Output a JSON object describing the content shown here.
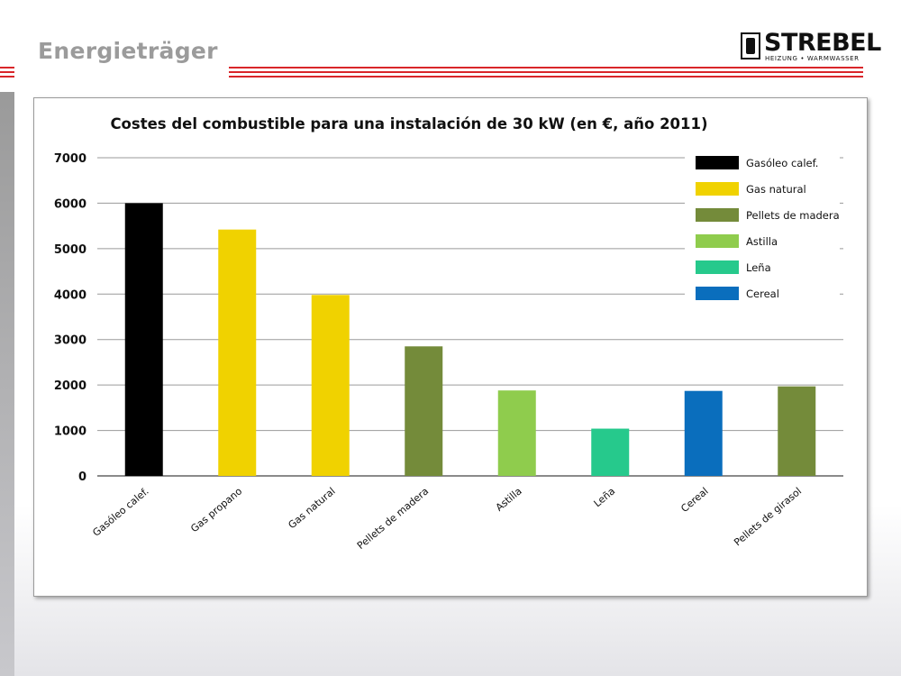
{
  "slide": {
    "title": "Energieträger",
    "logo_text": "STREBEL",
    "logo_subtext": "HEIZUNG • WARMWASSER"
  },
  "chart_data": {
    "type": "bar",
    "title": "Costes del combustible para una instalación de 30 kW (en €, año 2011)",
    "xlabel": "",
    "ylabel": "",
    "ylim": [
      0,
      7000
    ],
    "yticks": [
      0,
      1000,
      2000,
      3000,
      4000,
      5000,
      6000,
      7000
    ],
    "grid": true,
    "legend_position": "top-right",
    "categories": [
      "Gasóleo calef.",
      "Gas propano",
      "Gas natural",
      "Pellets de madera",
      "Astilla",
      "Leña",
      "Cereal",
      "Pellets de girasol"
    ],
    "values": [
      6000,
      5420,
      3980,
      2850,
      1880,
      1040,
      1870,
      1970
    ],
    "bar_colors": [
      "#000000",
      "#f0d200",
      "#f0d200",
      "#748b3a",
      "#8fcc4d",
      "#26c98c",
      "#0a6ebd",
      "#748b3a"
    ],
    "legend": [
      {
        "label": "Gasóleo calef.",
        "color": "#000000"
      },
      {
        "label": "Gas natural",
        "color": "#f0d200"
      },
      {
        "label": "Pellets de madera",
        "color": "#748b3a"
      },
      {
        "label": "Astilla",
        "color": "#8fcc4d"
      },
      {
        "label": "Leña",
        "color": "#26c98c"
      },
      {
        "label": "Cereal",
        "color": "#0a6ebd"
      }
    ]
  }
}
